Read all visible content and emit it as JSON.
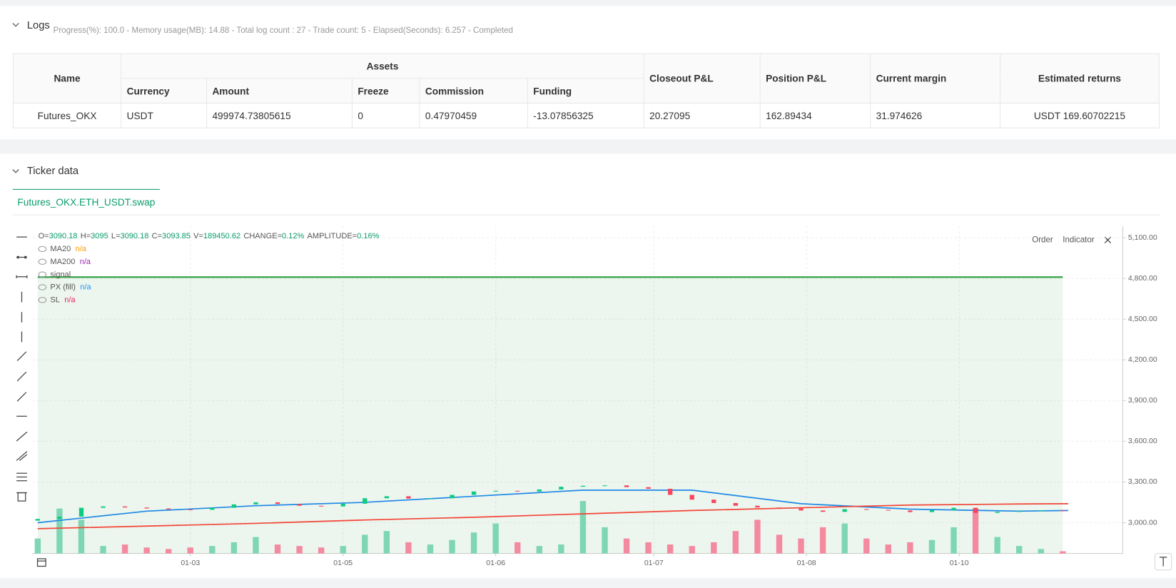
{
  "logs": {
    "title": "Logs",
    "status": "Progress(%): 100.0 - Memory usage(MB): 14.88 - Total log count : 27 - Trade count: 5 - Elapsed(Seconds): 6.257 - Completed"
  },
  "table": {
    "header_groups": [
      "Name",
      "Assets",
      "Closeout P&L",
      "Position P&L",
      "Current margin",
      "Estimated returns"
    ],
    "asset_columns": [
      "Currency",
      "Amount",
      "Freeze",
      "Commission",
      "Funding"
    ],
    "rows": [
      [
        "Futures_OKX",
        "USDT",
        "499974.73805615",
        "0",
        "0.47970459",
        "-13.07856325",
        "20.27095",
        "162.89434",
        "31.974626",
        "USDT 169.60702215"
      ]
    ]
  },
  "ticker": {
    "title": "Ticker data",
    "tab": "Futures_OKX.ETH_USDT.swap",
    "buttons": [
      "Order",
      "Indicator"
    ]
  },
  "chart_data": {
    "type": "candlestick",
    "ohlc_info": [
      {
        "label": "O=",
        "value": "3090.18"
      },
      {
        "label": "H=",
        "value": "3095"
      },
      {
        "label": "L=",
        "value": "3090.18"
      },
      {
        "label": "C=",
        "value": "3093.85"
      },
      {
        "label": "V=",
        "value": "189450.62"
      },
      {
        "label": "CHANGE=",
        "value": "0.12%"
      },
      {
        "label": "AMPLITUDE=",
        "value": "0.16%"
      }
    ],
    "legend": [
      {
        "name": "MA20",
        "value": "n/a",
        "color": "#ff9800"
      },
      {
        "name": "MA200",
        "value": "n/a",
        "color": "#9c27b0"
      },
      {
        "name": "signal"
      },
      {
        "name": "PX (fill)",
        "value": "n/a",
        "color": "#2196f3"
      },
      {
        "name": "SL",
        "value": "n/a",
        "color": "#e91e63"
      }
    ],
    "up_color": "#0ecb81",
    "down_color": "#f6465d",
    "up_volume_color": "#7fd6b4",
    "down_volume_color": "#f48aa0",
    "x": [
      0,
      4,
      8,
      12,
      16,
      20,
      24,
      28,
      32,
      36,
      40,
      44,
      48,
      52,
      56,
      60,
      64,
      68,
      72,
      76,
      80,
      84,
      88,
      92,
      96,
      100,
      104,
      108,
      112,
      116,
      120,
      124,
      128,
      132,
      136,
      140,
      144,
      148,
      152,
      156,
      160,
      164,
      168,
      172,
      176,
      180,
      184,
      188
    ],
    "open": [
      3015,
      3028,
      3045,
      3110,
      3120,
      3112,
      3105,
      3098,
      3095,
      3110,
      3135,
      3150,
      3138,
      3125,
      3120,
      3140,
      3180,
      3195,
      3178,
      3180,
      3205,
      3230,
      3235,
      3230,
      3245,
      3265,
      3272,
      3275,
      3262,
      3250,
      3205,
      3170,
      3145,
      3125,
      3112,
      3105,
      3090,
      3080,
      3100,
      3095,
      3090,
      3078,
      3092,
      3110,
      3072,
      3080,
      3085,
      3090
    ],
    "close": [
      3028,
      3045,
      3110,
      3120,
      3112,
      3105,
      3098,
      3095,
      3110,
      3135,
      3150,
      3138,
      3125,
      3120,
      3140,
      3180,
      3195,
      3178,
      3180,
      3205,
      3230,
      3235,
      3230,
      3245,
      3265,
      3272,
      3275,
      3262,
      3250,
      3205,
      3170,
      3145,
      3125,
      3112,
      3105,
      3090,
      3080,
      3100,
      3095,
      3090,
      3078,
      3092,
      3110,
      3072,
      3080,
      3085,
      3090,
      3088
    ],
    "volume": [
      2400000,
      7200000,
      5400000,
      1200000,
      1440000,
      960000,
      720000,
      960000,
      1200000,
      1800000,
      2640000,
      1440000,
      1200000,
      960000,
      1200000,
      3000000,
      3600000,
      1800000,
      1440000,
      2160000,
      3360000,
      4800000,
      1800000,
      1200000,
      1440000,
      8400000,
      4200000,
      2400000,
      1800000,
      1440000,
      1200000,
      1800000,
      3600000,
      5400000,
      3000000,
      2400000,
      4200000,
      4800000,
      2400000,
      1440000,
      1800000,
      2160000,
      4200000,
      7200000,
      2640000,
      1200000,
      720000,
      360000
    ],
    "y2lim": [
      0,
      12000000
    ],
    "lines": [
      {
        "color": "#1e88e5",
        "x": [
          0,
          20,
          40,
          60,
          80,
          100,
          120,
          140,
          160,
          180,
          189
        ],
        "values": [
          3000,
          3085,
          3125,
          3150,
          3195,
          3240,
          3240,
          3140,
          3100,
          3085,
          3090
        ]
      },
      {
        "color": "#f44336",
        "x": [
          0,
          20,
          40,
          60,
          80,
          100,
          120,
          140,
          160,
          180,
          189
        ],
        "values": [
          2956,
          2975,
          2995,
          3020,
          3040,
          3065,
          3090,
          3110,
          3130,
          3138,
          3140
        ]
      }
    ],
    "fill": {
      "color": "#2e9e3e",
      "x": [
        0,
        188
      ],
      "values": [
        4810,
        4810
      ]
    },
    "xlim": [
      -1,
      199
    ],
    "ylim": [
      2773,
      5183
    ],
    "xticks": [
      {
        "value": 28,
        "label": "01-03"
      },
      {
        "value": 56,
        "label": "01-05"
      },
      {
        "value": 84,
        "label": "01-06"
      },
      {
        "value": 113,
        "label": "01-07"
      },
      {
        "value": 141,
        "label": "01-08"
      },
      {
        "value": 169,
        "label": "01-10"
      }
    ],
    "yticks": [
      {
        "value": 3000,
        "label": "3,000.00"
      },
      {
        "value": 3300,
        "label": "3,300.00"
      },
      {
        "value": 3600,
        "label": "3,600.00"
      },
      {
        "value": 3900,
        "label": "3,900.00"
      },
      {
        "value": 4200,
        "label": "4,200.00"
      },
      {
        "value": 4500,
        "label": "4,500.00"
      },
      {
        "value": 4800,
        "label": "4,800.00"
      },
      {
        "value": 5100,
        "label": "5,100.00"
      }
    ],
    "grid": true
  }
}
